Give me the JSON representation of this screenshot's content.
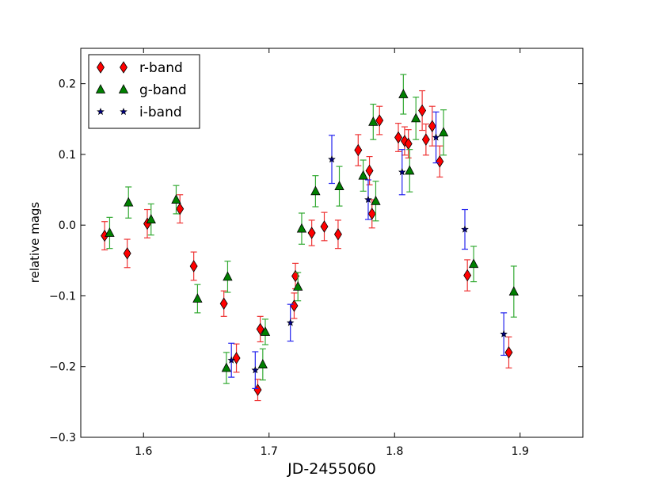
{
  "chart_data": {
    "type": "scatter",
    "title": "",
    "xlabel": "JD-2455060",
    "ylabel": "relative mags",
    "xlim": [
      1.55,
      1.95
    ],
    "ylim": [
      -0.3,
      0.25
    ],
    "xticks": [
      "1.6",
      "1.7",
      "1.8",
      "1.9"
    ],
    "yticks": [
      "−0.3",
      "−0.2",
      "−0.1",
      "0.0",
      "0.1",
      "0.2"
    ],
    "grid": false,
    "legend_position": "top-left",
    "series": [
      {
        "name": "r-band",
        "marker": "diamond",
        "color": "#ff0000",
        "error_color": "#ee3333",
        "points": [
          {
            "x": 1.569,
            "y": -0.015,
            "err": 0.02
          },
          {
            "x": 1.587,
            "y": -0.04,
            "err": 0.02
          },
          {
            "x": 1.603,
            "y": 0.002,
            "err": 0.02
          },
          {
            "x": 1.629,
            "y": 0.023,
            "err": 0.02
          },
          {
            "x": 1.64,
            "y": -0.058,
            "err": 0.02
          },
          {
            "x": 1.664,
            "y": -0.111,
            "err": 0.018
          },
          {
            "x": 1.674,
            "y": -0.188,
            "err": 0.02
          },
          {
            "x": 1.691,
            "y": -0.233,
            "err": 0.015
          },
          {
            "x": 1.693,
            "y": -0.147,
            "err": 0.018
          },
          {
            "x": 1.72,
            "y": -0.114,
            "err": 0.018
          },
          {
            "x": 1.721,
            "y": -0.072,
            "err": 0.018
          },
          {
            "x": 1.734,
            "y": -0.011,
            "err": 0.018
          },
          {
            "x": 1.744,
            "y": -0.002,
            "err": 0.02
          },
          {
            "x": 1.755,
            "y": -0.013,
            "err": 0.02
          },
          {
            "x": 1.771,
            "y": 0.106,
            "err": 0.022
          },
          {
            "x": 1.78,
            "y": 0.077,
            "err": 0.02
          },
          {
            "x": 1.782,
            "y": 0.016,
            "err": 0.02
          },
          {
            "x": 1.788,
            "y": 0.148,
            "err": 0.02
          },
          {
            "x": 1.803,
            "y": 0.124,
            "err": 0.02
          },
          {
            "x": 1.808,
            "y": 0.119,
            "err": 0.02
          },
          {
            "x": 1.811,
            "y": 0.115,
            "err": 0.02
          },
          {
            "x": 1.822,
            "y": 0.162,
            "err": 0.028
          },
          {
            "x": 1.825,
            "y": 0.121,
            "err": 0.022
          },
          {
            "x": 1.83,
            "y": 0.14,
            "err": 0.028
          },
          {
            "x": 1.836,
            "y": 0.09,
            "err": 0.022
          },
          {
            "x": 1.858,
            "y": -0.071,
            "err": 0.022
          },
          {
            "x": 1.891,
            "y": -0.18,
            "err": 0.022
          }
        ]
      },
      {
        "name": "g-band",
        "marker": "triangle",
        "color": "#008000",
        "error_color": "#33aa33",
        "points": [
          {
            "x": 1.573,
            "y": -0.011,
            "err": 0.022
          },
          {
            "x": 1.588,
            "y": 0.032,
            "err": 0.022
          },
          {
            "x": 1.606,
            "y": 0.008,
            "err": 0.022
          },
          {
            "x": 1.626,
            "y": 0.036,
            "err": 0.02
          },
          {
            "x": 1.643,
            "y": -0.104,
            "err": 0.02
          },
          {
            "x": 1.666,
            "y": -0.202,
            "err": 0.022
          },
          {
            "x": 1.667,
            "y": -0.073,
            "err": 0.022
          },
          {
            "x": 1.695,
            "y": -0.197,
            "err": 0.022
          },
          {
            "x": 1.697,
            "y": -0.151,
            "err": 0.018
          },
          {
            "x": 1.723,
            "y": -0.087,
            "err": 0.02
          },
          {
            "x": 1.726,
            "y": -0.005,
            "err": 0.022
          },
          {
            "x": 1.737,
            "y": 0.048,
            "err": 0.022
          },
          {
            "x": 1.756,
            "y": 0.055,
            "err": 0.028
          },
          {
            "x": 1.775,
            "y": 0.07,
            "err": 0.022
          },
          {
            "x": 1.783,
            "y": 0.146,
            "err": 0.025
          },
          {
            "x": 1.785,
            "y": 0.034,
            "err": 0.028
          },
          {
            "x": 1.807,
            "y": 0.185,
            "err": 0.028
          },
          {
            "x": 1.812,
            "y": 0.077,
            "err": 0.03
          },
          {
            "x": 1.817,
            "y": 0.151,
            "err": 0.03
          },
          {
            "x": 1.839,
            "y": 0.131,
            "err": 0.032
          },
          {
            "x": 1.863,
            "y": -0.055,
            "err": 0.025
          },
          {
            "x": 1.895,
            "y": -0.094,
            "err": 0.036
          }
        ]
      },
      {
        "name": "i-band",
        "marker": "star",
        "color": "#000080",
        "error_color": "#2222ee",
        "points": [
          {
            "x": 1.67,
            "y": -0.191,
            "err": 0.024
          },
          {
            "x": 1.689,
            "y": -0.205,
            "err": 0.026
          },
          {
            "x": 1.717,
            "y": -0.138,
            "err": 0.026
          },
          {
            "x": 1.75,
            "y": 0.093,
            "err": 0.034
          },
          {
            "x": 1.779,
            "y": 0.036,
            "err": 0.028
          },
          {
            "x": 1.806,
            "y": 0.075,
            "err": 0.032
          },
          {
            "x": 1.833,
            "y": 0.124,
            "err": 0.036
          },
          {
            "x": 1.856,
            "y": -0.006,
            "err": 0.028
          },
          {
            "x": 1.887,
            "y": -0.154,
            "err": 0.03
          }
        ]
      }
    ]
  }
}
